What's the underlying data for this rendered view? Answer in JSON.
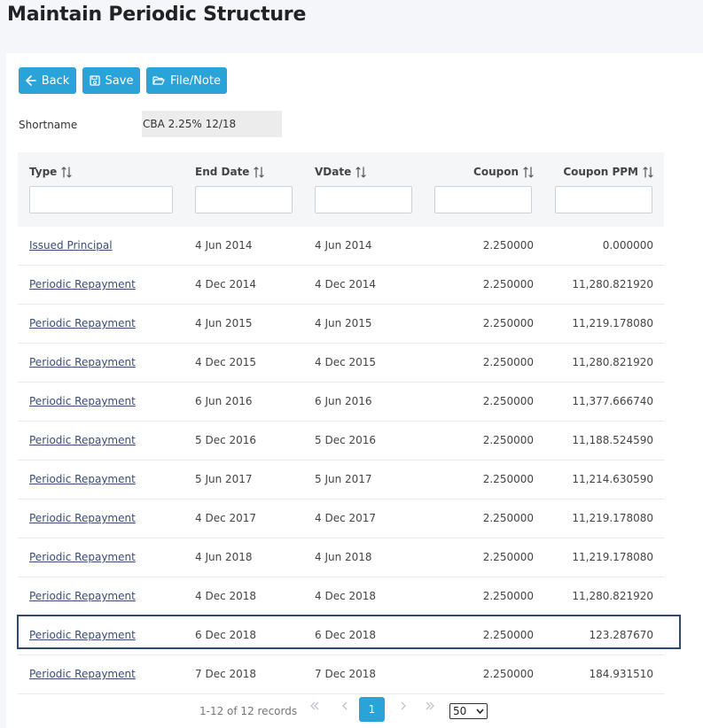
{
  "page": {
    "title": "Maintain Periodic Structure"
  },
  "toolbar": {
    "back_label": "Back",
    "save_label": "Save",
    "file_label": "File/Note"
  },
  "shortname": {
    "label": "Shortname",
    "value": "CBA 2.25% 12/18"
  },
  "table": {
    "columns": [
      {
        "key": "type",
        "label": "Type"
      },
      {
        "key": "end_date",
        "label": "End Date"
      },
      {
        "key": "vdate",
        "label": "VDate"
      },
      {
        "key": "coupon",
        "label": "Coupon"
      },
      {
        "key": "coupon_ppm",
        "label": "Coupon PPM"
      }
    ],
    "rows": [
      {
        "type": "Issued Principal",
        "end_date": "4 Jun 2014",
        "vdate": "4 Jun 2014",
        "coupon": "2.250000",
        "coupon_ppm": "0.000000"
      },
      {
        "type": "Periodic Repayment",
        "end_date": "4 Dec 2014",
        "vdate": "4 Dec 2014",
        "coupon": "2.250000",
        "coupon_ppm": "11,280.821920"
      },
      {
        "type": "Periodic Repayment",
        "end_date": "4 Jun 2015",
        "vdate": "4 Jun 2015",
        "coupon": "2.250000",
        "coupon_ppm": "11,219.178080"
      },
      {
        "type": "Periodic Repayment",
        "end_date": "4 Dec 2015",
        "vdate": "4 Dec 2015",
        "coupon": "2.250000",
        "coupon_ppm": "11,280.821920"
      },
      {
        "type": "Periodic Repayment",
        "end_date": "6 Jun 2016",
        "vdate": "6 Jun 2016",
        "coupon": "2.250000",
        "coupon_ppm": "11,377.666740"
      },
      {
        "type": "Periodic Repayment",
        "end_date": "5 Dec 2016",
        "vdate": "5 Dec 2016",
        "coupon": "2.250000",
        "coupon_ppm": "11,188.524590"
      },
      {
        "type": "Periodic Repayment",
        "end_date": "5 Jun 2017",
        "vdate": "5 Jun 2017",
        "coupon": "2.250000",
        "coupon_ppm": "11,214.630590"
      },
      {
        "type": "Periodic Repayment",
        "end_date": "4 Dec 2017",
        "vdate": "4 Dec 2017",
        "coupon": "2.250000",
        "coupon_ppm": "11,219.178080"
      },
      {
        "type": "Periodic Repayment",
        "end_date": "4 Jun 2018",
        "vdate": "4 Jun 2018",
        "coupon": "2.250000",
        "coupon_ppm": "11,219.178080"
      },
      {
        "type": "Periodic Repayment",
        "end_date": "4 Dec 2018",
        "vdate": "4 Dec 2018",
        "coupon": "2.250000",
        "coupon_ppm": "11,280.821920"
      },
      {
        "type": "Periodic Repayment",
        "end_date": "6 Dec 2018",
        "vdate": "6 Dec 2018",
        "coupon": "2.250000",
        "coupon_ppm": "123.287670",
        "selected": true
      },
      {
        "type": "Periodic Repayment",
        "end_date": "7 Dec 2018",
        "vdate": "7 Dec 2018",
        "coupon": "2.250000",
        "coupon_ppm": "184.931510"
      }
    ]
  },
  "pagination": {
    "records_text": "1-12 of 12 records",
    "current_page": "1",
    "page_size": "50",
    "icons": [
      "first-page-icon",
      "prev-page-icon",
      "next-page-icon",
      "last-page-icon"
    ]
  },
  "colors": {
    "accent": "#2aa3d8",
    "link": "#3a4d73",
    "selected_border": "#2e4a75",
    "header_bg": "#f5f6f8"
  }
}
